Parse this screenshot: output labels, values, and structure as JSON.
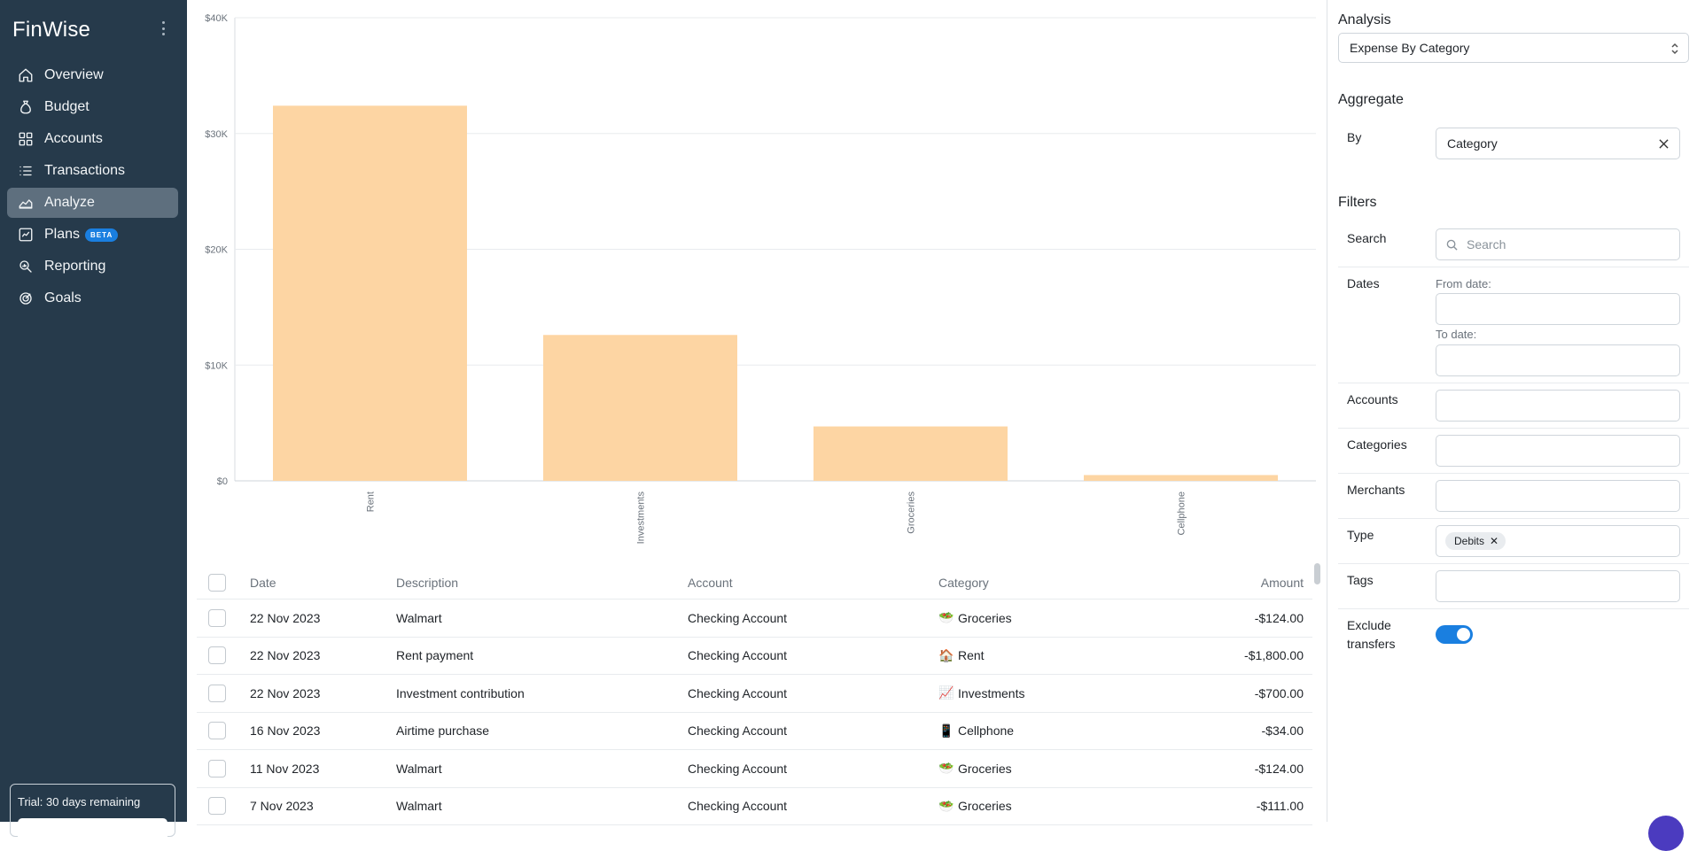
{
  "app": {
    "name": "FinWise"
  },
  "sidebar": {
    "items": [
      {
        "label": "Overview",
        "icon": "home-icon"
      },
      {
        "label": "Budget",
        "icon": "money-bag-icon"
      },
      {
        "label": "Accounts",
        "icon": "grid-icon"
      },
      {
        "label": "Transactions",
        "icon": "list-icon"
      },
      {
        "label": "Analyze",
        "icon": "area-chart-icon",
        "active": true
      },
      {
        "label": "Plans",
        "icon": "line-chart-icon",
        "badge": "BETA"
      },
      {
        "label": "Reporting",
        "icon": "search-report-icon"
      },
      {
        "label": "Goals",
        "icon": "target-icon"
      }
    ],
    "trial": {
      "text": "Trial: 30 days remaining"
    }
  },
  "chart_data": {
    "type": "bar",
    "categories": [
      "Rent",
      "Investments",
      "Groceries",
      "Cellphone"
    ],
    "values": [
      32400,
      12600,
      4700,
      500
    ],
    "yticks": [
      "$0",
      "$10K",
      "$20K",
      "$30K",
      "$40K"
    ],
    "ylim": [
      0,
      40000
    ],
    "grid": true,
    "color": "#fdd5a3"
  },
  "table": {
    "columns": [
      "Date",
      "Description",
      "Account",
      "Category",
      "Amount"
    ],
    "rows": [
      {
        "date": "22 Nov 2023",
        "description": "Walmart",
        "account": "Checking Account",
        "category_icon": "🥗",
        "category": "Groceries",
        "amount": "-$124.00"
      },
      {
        "date": "22 Nov 2023",
        "description": "Rent payment",
        "account": "Checking Account",
        "category_icon": "🏠",
        "category": "Rent",
        "amount": "-$1,800.00"
      },
      {
        "date": "22 Nov 2023",
        "description": "Investment contribution",
        "account": "Checking Account",
        "category_icon": "📈",
        "category": "Investments",
        "amount": "-$700.00"
      },
      {
        "date": "16 Nov 2023",
        "description": "Airtime purchase",
        "account": "Checking Account",
        "category_icon": "📱",
        "category": "Cellphone",
        "amount": "-$34.00"
      },
      {
        "date": "11 Nov 2023",
        "description": "Walmart",
        "account": "Checking Account",
        "category_icon": "🥗",
        "category": "Groceries",
        "amount": "-$124.00"
      },
      {
        "date": "7 Nov 2023",
        "description": "Walmart",
        "account": "Checking Account",
        "category_icon": "🥗",
        "category": "Groceries",
        "amount": "-$111.00"
      }
    ]
  },
  "panel": {
    "analysis_title": "Analysis",
    "analysis_value": "Expense By Category",
    "aggregate_title": "Aggregate",
    "by_label": "By",
    "by_value": "Category",
    "filters_title": "Filters",
    "search_label": "Search",
    "search_placeholder": "Search",
    "dates_label": "Dates",
    "from_label": "From date:",
    "to_label": "To date:",
    "accounts_label": "Accounts",
    "categories_label": "Categories",
    "merchants_label": "Merchants",
    "type_label": "Type",
    "type_tag": "Debits",
    "tags_label": "Tags",
    "exclude_label_1": "Exclude",
    "exclude_label_2": "transfers",
    "exclude_on": true
  }
}
